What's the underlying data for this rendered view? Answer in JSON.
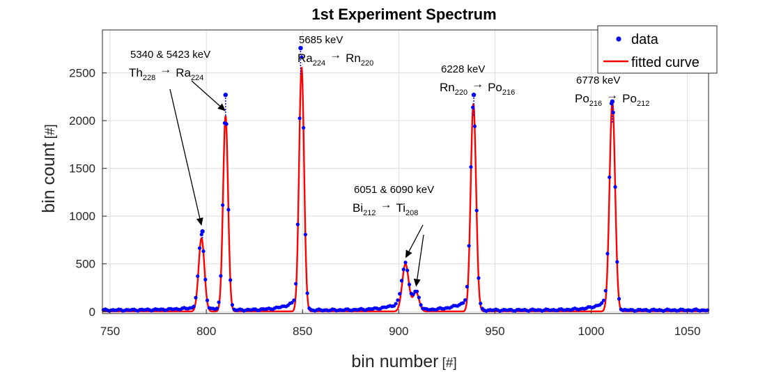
{
  "chart_data": {
    "type": "scatter",
    "title": "1st Experiment Spectrum",
    "xlabel": "bin number",
    "xlabel_unit": "[#]",
    "ylabel": "bin count",
    "ylabel_unit": "[#]",
    "xlim": [
      746,
      1061
    ],
    "ylim": [
      -20,
      2950
    ],
    "xticks": [
      750,
      800,
      850,
      900,
      950,
      1000,
      1050
    ],
    "yticks": [
      0,
      500,
      1000,
      1500,
      2000,
      2500
    ],
    "grid": true,
    "legend_position": "top-right",
    "legend": [
      {
        "label": "data",
        "color": "#0000ff",
        "marker": "dot"
      },
      {
        "label": "fitted curve",
        "color": "#ff0000",
        "marker": "line"
      }
    ],
    "baseline": 15,
    "background_shoulders": [
      {
        "center": 796,
        "amp": 30,
        "sigma": 12
      },
      {
        "center": 809,
        "amp": 60,
        "sigma": 3
      },
      {
        "center": 848,
        "amp": 120,
        "sigma": 7
      },
      {
        "center": 900,
        "amp": 70,
        "sigma": 8
      },
      {
        "center": 936,
        "amp": 110,
        "sigma": 7
      },
      {
        "center": 1009,
        "amp": 110,
        "sigma": 7
      }
    ],
    "peaks": [
      {
        "center": 797.5,
        "amplitude": 770,
        "sigma": 1.5
      },
      {
        "center": 810,
        "amplitude": 2050,
        "sigma": 1.3
      },
      {
        "center": 849.5,
        "amplitude": 2560,
        "sigma": 1.3
      },
      {
        "center": 903.5,
        "amplitude": 500,
        "sigma": 1.7
      },
      {
        "center": 909,
        "amplitude": 200,
        "sigma": 1.6
      },
      {
        "center": 938.8,
        "amplitude": 2180,
        "sigma": 1.4
      },
      {
        "center": 1011,
        "amplitude": 2200,
        "sigma": 1.45
      }
    ],
    "highlight_points": [
      {
        "x": 798,
        "y": 840
      },
      {
        "x": 810,
        "y": 2270
      },
      {
        "x": 849,
        "y": 2760
      },
      {
        "x": 939,
        "y": 2270
      },
      {
        "x": 1011,
        "y": 2200
      }
    ],
    "annotations": [
      {
        "energy": "5340 & 5423 keV",
        "parent": "Th",
        "parent_sub": "228",
        "daughter": "Ra",
        "daughter_sub": "224",
        "arrows_to": [
          {
            "x": 797.5,
            "y": 900
          },
          {
            "x": 810,
            "y": 2100
          }
        ]
      },
      {
        "energy": "5685 keV",
        "parent": "Ra",
        "parent_sub": "224",
        "daughter": "Rn",
        "daughter_sub": "220",
        "arrows_to": []
      },
      {
        "energy": "6051 & 6090 keV",
        "parent": "Bi",
        "parent_sub": "212",
        "daughter": "Ti",
        "daughter_sub": "208",
        "arrows_to": [
          {
            "x": 903.5,
            "y": 560
          },
          {
            "x": 909,
            "y": 260
          }
        ]
      },
      {
        "energy": "6228 keV",
        "parent": "Rn",
        "parent_sub": "220",
        "daughter": "Po",
        "daughter_sub": "216",
        "arrows_to": []
      },
      {
        "energy": "6778 keV",
        "parent": "Po",
        "parent_sub": "216",
        "daughter": "Po",
        "daughter_sub": "212",
        "arrows_to": []
      }
    ]
  }
}
